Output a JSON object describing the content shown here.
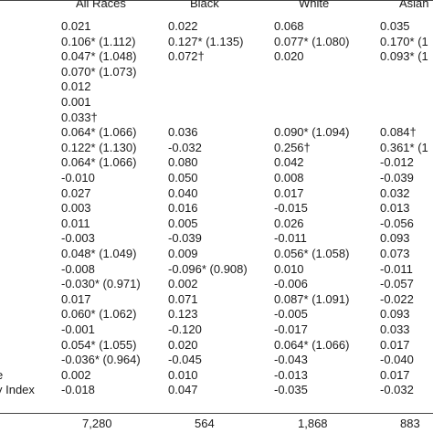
{
  "table": {
    "headers": [
      "All Races",
      "Black",
      "White",
      "Asian"
    ],
    "rows": [
      {
        "label": "",
        "all": "0.021",
        "black": "0.022",
        "white": "0.068",
        "asian": "0.035"
      },
      {
        "label": "",
        "all": "0.106* (1.112)",
        "black": "0.127* (1.135)",
        "white": "0.077* (1.080)",
        "asian": "0.170* (1"
      },
      {
        "label": "",
        "all": "0.047* (1.048)",
        "black": "0.072†",
        "white": "0.020",
        "asian": "0.093* (1"
      },
      {
        "label": "",
        "all": "0.070* (1.073)",
        "black": "",
        "white": "",
        "asian": ""
      },
      {
        "label": "",
        "all": "0.012",
        "black": "",
        "white": "",
        "asian": ""
      },
      {
        "label": "",
        "all": "0.001",
        "black": "",
        "white": "",
        "asian": ""
      },
      {
        "label": "",
        "all": "0.033†",
        "black": "",
        "white": "",
        "asian": ""
      },
      {
        "label": "",
        "all": "0.064* (1.066)",
        "black": "0.036",
        "white": "0.090* (1.094)",
        "asian": "0.084†"
      },
      {
        "label": "",
        "all": "0.122* (1.130)",
        "black": "-0.032",
        "white": "0.256†",
        "asian": "0.361* (1"
      },
      {
        "label": "",
        "all": "0.064* (1.066)",
        "black": "0.080",
        "white": "0.042",
        "asian": "-0.012"
      },
      {
        "label": "",
        "all": "-0.010",
        "black": "0.050",
        "white": "0.008",
        "asian": "-0.039"
      },
      {
        "label": "",
        "all": "0.027",
        "black": "0.040",
        "white": "0.017",
        "asian": "0.032"
      },
      {
        "label": "",
        "all": "0.003",
        "black": "0.016",
        "white": "-0.015",
        "asian": "0.013"
      },
      {
        "label": "",
        "all": "0.011",
        "black": "0.005",
        "white": "0.026",
        "asian": "-0.056"
      },
      {
        "label": "",
        "all": "-0.003",
        "black": "-0.039",
        "white": "-0.011",
        "asian": "0.093"
      },
      {
        "label": "",
        "all": "0.048* (1.049)",
        "black": "0.009",
        "white": "0.056* (1.058)",
        "asian": "0.073"
      },
      {
        "label": "",
        "all": "-0.008",
        "black": "-0.096* (0.908)",
        "white": "0.010",
        "asian": "-0.011"
      },
      {
        "label": "",
        "all": "-0.030* (0.971)",
        "black": "0.002",
        "white": "-0.006",
        "asian": "-0.057"
      },
      {
        "label": "",
        "all": "0.017",
        "black": "0.071",
        "white": "0.087* (1.091)",
        "asian": "-0.022"
      },
      {
        "label": "",
        "all": "0.060* (1.062)",
        "black": "0.123",
        "white": "-0.005",
        "asian": "0.093"
      },
      {
        "label": "",
        "all": "-0.001",
        "black": "-0.120",
        "white": "-0.017",
        "asian": "0.033"
      },
      {
        "label": "",
        "all": "0.054* (1.055)",
        "black": "0.020",
        "white": "0.064* (1.066)",
        "asian": "0.017"
      },
      {
        "label": "",
        "all": "-0.036* (0.964)",
        "black": "-0.045",
        "white": "-0.043",
        "asian": "-0.040"
      },
      {
        "label": "e",
        "all": "0.002",
        "black": "0.010",
        "white": "-0.013",
        "asian": "0.017"
      },
      {
        "label": "y Index",
        "all": "-0.018",
        "black": "0.047",
        "white": "-0.035",
        "asian": "-0.032"
      }
    ],
    "n_row": {
      "all": "7,280",
      "black": "564",
      "white": "1,868",
      "asian": "883"
    }
  }
}
